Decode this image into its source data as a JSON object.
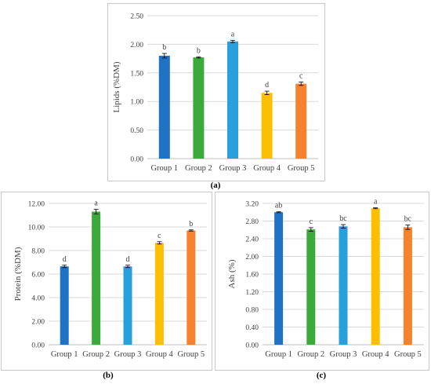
{
  "chart_data": [
    {
      "id": "a",
      "type": "bar",
      "ylabel": "Lipids (%DM)",
      "xlabel": "",
      "ylim": [
        0,
        2.5
      ],
      "yticks": [
        "0.00",
        "0.50",
        "1.00",
        "1.50",
        "2.00",
        "2.50"
      ],
      "grid": true,
      "categories": [
        "Group 1",
        "Group 2",
        "Group 3",
        "Group 4",
        "Group 5"
      ],
      "values": [
        1.8,
        1.77,
        2.05,
        1.15,
        1.31
      ],
      "errors": [
        0.04,
        0.01,
        0.02,
        0.03,
        0.03
      ],
      "letters": [
        "b",
        "b",
        "a",
        "d",
        "c"
      ],
      "colors": [
        "#1f72c4",
        "#3aaa3a",
        "#27a0dc",
        "#fdbf00",
        "#f6822d"
      ],
      "caption": "(a)"
    },
    {
      "id": "b",
      "type": "bar",
      "ylabel": "Protein (%DM)",
      "xlabel": "",
      "ylim": [
        0,
        12
      ],
      "yticks": [
        "0.00",
        "2.00",
        "4.00",
        "6.00",
        "8.00",
        "10.00",
        "12.00"
      ],
      "grid": true,
      "categories": [
        "Group 1",
        "Group 2",
        "Group 3",
        "Group 4",
        "Group 5"
      ],
      "values": [
        6.65,
        11.3,
        6.65,
        8.65,
        9.7
      ],
      "errors": [
        0.1,
        0.2,
        0.1,
        0.1,
        0.05
      ],
      "letters": [
        "d",
        "a",
        "d",
        "c",
        "b"
      ],
      "colors": [
        "#1f72c4",
        "#3aaa3a",
        "#27a0dc",
        "#fdbf00",
        "#f6822d"
      ],
      "caption": "(b)"
    },
    {
      "id": "c",
      "type": "bar",
      "ylabel": "Ash (%)",
      "xlabel": "",
      "ylim": [
        0,
        3.2
      ],
      "yticks": [
        "0.00",
        "0.40",
        "0.80",
        "1.20",
        "1.60",
        "2.00",
        "2.40",
        "2.80",
        "3.20"
      ],
      "grid": true,
      "categories": [
        "Group 1",
        "Group 2",
        "Group 3",
        "Group 4",
        "Group 5"
      ],
      "values": [
        3.0,
        2.61,
        2.68,
        3.09,
        2.66
      ],
      "errors": [
        0.01,
        0.04,
        0.04,
        0.01,
        0.05
      ],
      "letters": [
        "ab",
        "c",
        "bc",
        "a",
        "bc"
      ],
      "colors": [
        "#1f72c4",
        "#3aaa3a",
        "#27a0dc",
        "#fdbf00",
        "#f6822d"
      ],
      "caption": "(c)"
    }
  ]
}
